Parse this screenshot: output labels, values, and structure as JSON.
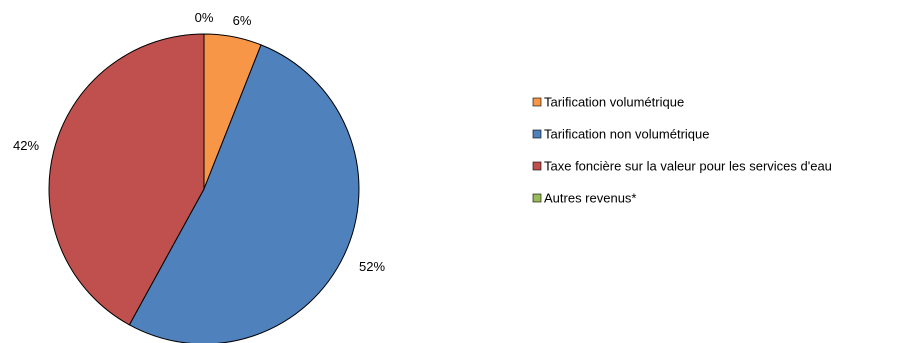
{
  "chart_data": {
    "type": "pie",
    "slices": [
      {
        "label": "Tarification volumétrique",
        "value": 6,
        "value_label": "6%",
        "color": "#F79646"
      },
      {
        "label": "Tarification non volumétrique",
        "value": 52,
        "value_label": "52%",
        "color": "#4F81BD"
      },
      {
        "label": "Taxe foncière sur la valeur pour les services d'eau",
        "value": 42,
        "value_label": "42%",
        "color": "#C0504D"
      },
      {
        "label": "Autres revenus*",
        "value": 0,
        "value_label": "0%",
        "color": "#9BBB59"
      }
    ],
    "legend_position": "right"
  }
}
